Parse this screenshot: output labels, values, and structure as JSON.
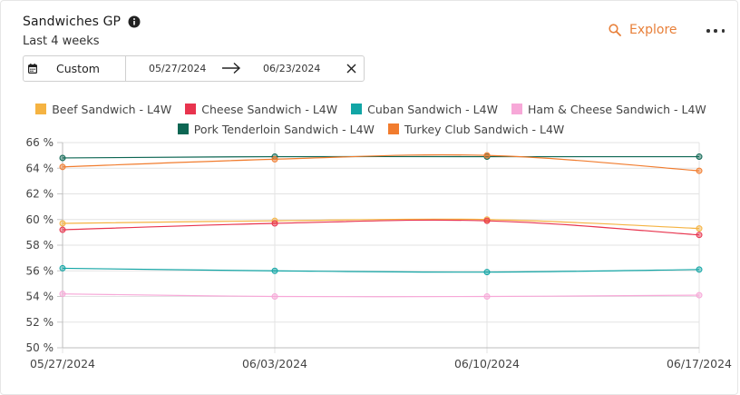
{
  "header": {
    "title": "Sandwiches GP",
    "subtitle": "Last 4 weeks",
    "explore_label": "Explore"
  },
  "date_range": {
    "preset": "Custom",
    "start": "05/27/2024",
    "end": "06/23/2024"
  },
  "colors": {
    "accent": "#e8803a"
  },
  "chart_data": {
    "type": "line",
    "x": [
      "05/27/2024",
      "06/03/2024",
      "06/10/2024",
      "06/17/2024"
    ],
    "ylim": [
      50,
      66
    ],
    "yticks": [
      50,
      52,
      54,
      56,
      58,
      60,
      62,
      64,
      66
    ],
    "ytick_labels": [
      "50 %",
      "52 %",
      "54 %",
      "56 %",
      "58 %",
      "60 %",
      "62 %",
      "64 %",
      "66 %"
    ],
    "grid": true,
    "legend_position": "top",
    "series": [
      {
        "name": "Beef Sandwich - L4W",
        "color": "#f5b342",
        "values": [
          59.7,
          59.9,
          60.0,
          59.3
        ]
      },
      {
        "name": "Cheese Sandwich - L4W",
        "color": "#e8344e",
        "values": [
          59.2,
          59.7,
          59.9,
          58.8
        ]
      },
      {
        "name": "Cuban Sandwich - L4W",
        "color": "#12a5a5",
        "values": [
          56.2,
          56.0,
          55.9,
          56.1
        ]
      },
      {
        "name": "Ham & Cheese Sandwich - L4W",
        "color": "#f7a8d8",
        "values": [
          54.2,
          54.0,
          54.0,
          54.1
        ]
      },
      {
        "name": "Pork Tenderloin Sandwich - L4W",
        "color": "#0d6653",
        "values": [
          64.8,
          64.9,
          64.9,
          64.9
        ]
      },
      {
        "name": "Turkey Club Sandwich - L4W",
        "color": "#f17c2e",
        "values": [
          64.1,
          64.7,
          65.0,
          63.8
        ]
      }
    ]
  }
}
